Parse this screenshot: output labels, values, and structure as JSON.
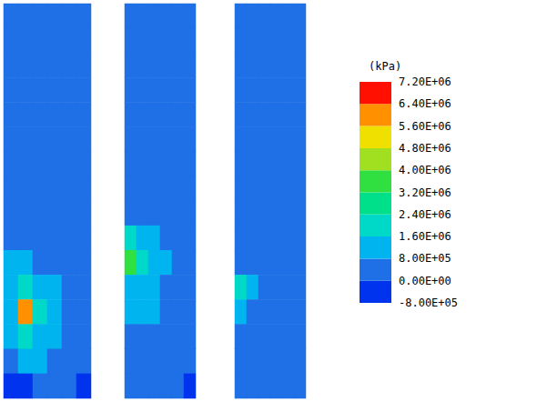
{
  "chart_data": {
    "type": "heatmap",
    "colorbar_title": "(kPa)",
    "color_range": [
      -800000,
      7200000
    ],
    "color_ticks": [
      {
        "value": -800000,
        "label": "-8.00E+05"
      },
      {
        "value": 0,
        "label": "0.00E+00"
      },
      {
        "value": 800000,
        "label": "8.00E+05"
      },
      {
        "value": 1600000,
        "label": "1.60E+06"
      },
      {
        "value": 2400000,
        "label": "2.40E+06"
      },
      {
        "value": 3200000,
        "label": "3.20E+06"
      },
      {
        "value": 4000000,
        "label": "4.00E+06"
      },
      {
        "value": 4800000,
        "label": "4.80E+06"
      },
      {
        "value": 5600000,
        "label": "5.60E+06"
      },
      {
        "value": 6400000,
        "label": "6.40E+06"
      },
      {
        "value": 7200000,
        "label": "7.20E+06"
      }
    ],
    "colors": [
      "#0033ee",
      "#1f6fe6",
      "#00b4f0",
      "#00d8c8",
      "#00e08a",
      "#30e040",
      "#a0e020",
      "#f0e000",
      "#ff9000",
      "#ff1000"
    ],
    "panels": [
      {
        "cells": [
          [
            300000,
            300000,
            300000,
            300000,
            300000,
            300000
          ],
          [
            300000,
            300000,
            300000,
            300000,
            300000,
            300000
          ],
          [
            300000,
            300000,
            300000,
            300000,
            300000,
            300000
          ],
          [
            300000,
            300000,
            300000,
            300000,
            300000,
            300000
          ],
          [
            300000,
            300000,
            300000,
            300000,
            300000,
            300000
          ],
          [
            300000,
            300000,
            300000,
            300000,
            300000,
            300000
          ],
          [
            300000,
            300000,
            300000,
            300000,
            300000,
            300000
          ],
          [
            300000,
            300000,
            300000,
            300000,
            300000,
            300000
          ],
          [
            400000,
            400000,
            400000,
            400000,
            300000,
            300000
          ],
          [
            600000,
            500000,
            500000,
            400000,
            400000,
            300000
          ],
          [
            1000000,
            900000,
            700000,
            500000,
            400000,
            300000
          ],
          [
            1200000,
            2000000,
            1400000,
            900000,
            600000,
            400000
          ],
          [
            1500000,
            5700000,
            2200000,
            1200000,
            700000,
            400000
          ],
          [
            1000000,
            2000000,
            1500000,
            1000000,
            600000,
            300000
          ],
          [
            600000,
            1000000,
            900000,
            700000,
            400000,
            200000
          ],
          [
            -300000,
            -200000,
            200000,
            300000,
            100000,
            -400000
          ]
        ]
      },
      {
        "cells": [
          [
            300000,
            300000,
            300000,
            300000,
            300000,
            300000
          ],
          [
            300000,
            300000,
            300000,
            300000,
            300000,
            300000
          ],
          [
            300000,
            300000,
            300000,
            300000,
            300000,
            300000
          ],
          [
            300000,
            300000,
            300000,
            300000,
            300000,
            300000
          ],
          [
            300000,
            300000,
            300000,
            300000,
            300000,
            300000
          ],
          [
            300000,
            300000,
            300000,
            300000,
            300000,
            300000
          ],
          [
            400000,
            400000,
            400000,
            300000,
            300000,
            300000
          ],
          [
            500000,
            500000,
            500000,
            400000,
            300000,
            300000
          ],
          [
            600000,
            700000,
            600000,
            500000,
            400000,
            300000
          ],
          [
            1600000,
            1400000,
            1000000,
            700000,
            500000,
            300000
          ],
          [
            3300000,
            2000000,
            1200000,
            800000,
            500000,
            300000
          ],
          [
            1500000,
            1400000,
            1100000,
            700000,
            400000,
            300000
          ],
          [
            900000,
            900000,
            800000,
            600000,
            400000,
            300000
          ],
          [
            600000,
            600000,
            500000,
            400000,
            300000,
            300000
          ],
          [
            400000,
            400000,
            400000,
            300000,
            300000,
            200000
          ],
          [
            100000,
            300000,
            300000,
            200000,
            100000,
            -200000
          ]
        ]
      },
      {
        "cells": [
          [
            300000,
            300000,
            300000,
            300000,
            300000,
            300000
          ],
          [
            300000,
            300000,
            300000,
            300000,
            300000,
            300000
          ],
          [
            300000,
            300000,
            300000,
            300000,
            300000,
            300000
          ],
          [
            300000,
            300000,
            300000,
            300000,
            300000,
            300000
          ],
          [
            300000,
            300000,
            300000,
            300000,
            300000,
            300000
          ],
          [
            300000,
            300000,
            300000,
            300000,
            300000,
            300000
          ],
          [
            300000,
            300000,
            300000,
            300000,
            300000,
            300000
          ],
          [
            300000,
            300000,
            300000,
            300000,
            300000,
            300000
          ],
          [
            400000,
            400000,
            300000,
            300000,
            300000,
            300000
          ],
          [
            500000,
            400000,
            400000,
            300000,
            300000,
            300000
          ],
          [
            700000,
            500000,
            400000,
            400000,
            300000,
            300000
          ],
          [
            1800000,
            900000,
            600000,
            500000,
            400000,
            300000
          ],
          [
            900000,
            700000,
            600000,
            500000,
            400000,
            300000
          ],
          [
            500000,
            500000,
            500000,
            400000,
            300000,
            300000
          ],
          [
            400000,
            400000,
            400000,
            300000,
            300000,
            300000
          ],
          [
            300000,
            300000,
            300000,
            300000,
            200000,
            200000
          ]
        ]
      }
    ]
  }
}
